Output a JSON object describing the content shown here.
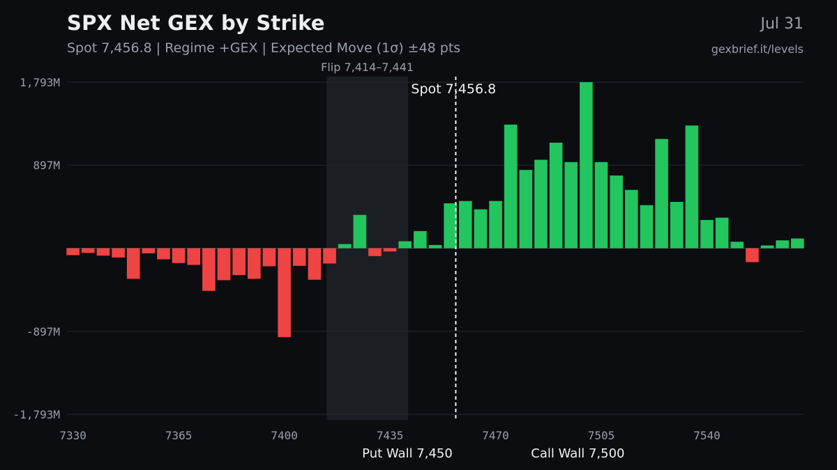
{
  "header": {
    "title": "SPX Net GEX by Strike",
    "subtitle": "Spot 7,456.8 | Regime +GEX | Expected Move (1σ) ±48 pts",
    "date": "Jul 31",
    "source": "gexbrief.it/levels"
  },
  "colors": {
    "background": "#0b0d11",
    "positive": "#22c55e",
    "negative": "#ef4444",
    "grid": "#262a31",
    "flip_zone": "#1b1f24",
    "text_muted": "#9aa0a8",
    "text_light": "#e6e8eb"
  },
  "chart_data": {
    "type": "bar",
    "title": "SPX Net GEX by Strike",
    "xlabel": "",
    "ylabel": "",
    "strike_step": 5,
    "x": [
      7330,
      7335,
      7340,
      7345,
      7350,
      7355,
      7360,
      7365,
      7370,
      7375,
      7380,
      7385,
      7390,
      7395,
      7400,
      7405,
      7410,
      7415,
      7420,
      7425,
      7430,
      7435,
      7440,
      7445,
      7450,
      7455,
      7460,
      7465,
      7470,
      7475,
      7480,
      7485,
      7490,
      7495,
      7500,
      7505,
      7510,
      7515,
      7520,
      7525,
      7530,
      7535,
      7540,
      7545,
      7550,
      7555,
      7560,
      7565,
      7570
    ],
    "values": [
      -75,
      -50,
      -80,
      -100,
      -330,
      -55,
      -120,
      -160,
      -180,
      -460,
      -345,
      -290,
      -330,
      -195,
      -960,
      -190,
      -340,
      -165,
      45,
      360,
      -85,
      -35,
      75,
      185,
      35,
      485,
      510,
      420,
      510,
      1335,
      845,
      955,
      1140,
      930,
      1793,
      930,
      785,
      630,
      465,
      1180,
      500,
      1325,
      305,
      330,
      70,
      -150,
      30,
      85,
      105
    ],
    "x_ticks": [
      7330,
      7365,
      7400,
      7435,
      7470,
      7505,
      7540
    ],
    "x_tick_labels": [
      "7330",
      "7365",
      "7400",
      "7435",
      "7470",
      "7505",
      "7540"
    ],
    "xlim": [
      7328,
      7572
    ],
    "ylim": [
      -1793,
      1793
    ],
    "y_ticks": [
      1793,
      897,
      -897,
      -1793
    ],
    "y_tick_labels": [
      "1,793M",
      "897M",
      "-897M",
      "-1,793M"
    ],
    "grid": true,
    "annotations": {
      "spot": {
        "value": 7456.8,
        "label": "Spot 7,456.8"
      },
      "flip_zone": {
        "from": 7414,
        "to": 7441,
        "label": "Flip 7,414–7,441"
      },
      "put_wall": {
        "value": 7450,
        "label": "Put Wall 7,450"
      },
      "call_wall": {
        "value": 7500,
        "label": "Call Wall 7,500"
      }
    }
  }
}
